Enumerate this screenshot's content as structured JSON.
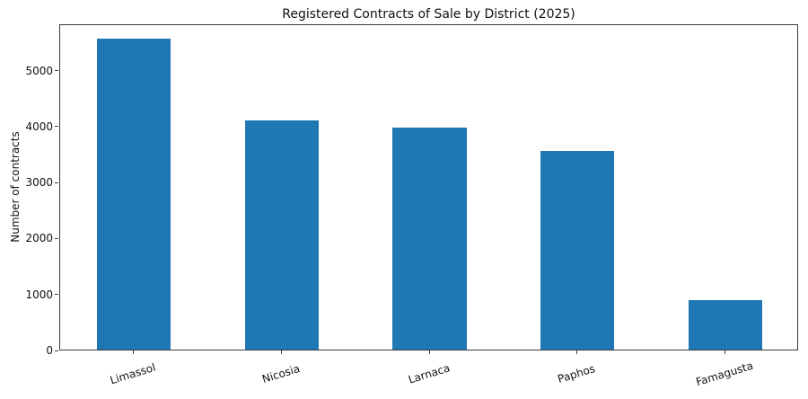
{
  "chart_data": {
    "type": "bar",
    "title": "Registered Contracts of Sale by District (2025)",
    "ylabel": "Number of contracts",
    "xlabel": "",
    "categories": [
      "Limassol",
      "Nicosia",
      "Larnaca",
      "Paphos",
      "Famagusta"
    ],
    "values": [
      5555,
      4100,
      3975,
      3550,
      890
    ],
    "yticks": [
      0,
      1000,
      2000,
      3000,
      4000,
      5000
    ],
    "ylim": [
      0,
      5830
    ],
    "grid": false,
    "legend_position": "none",
    "bar_color": "#1f77b4",
    "axis_color": "#3c3c3c",
    "bar_width_fraction": 0.5,
    "x_tick_label_rotation_deg": 17
  }
}
